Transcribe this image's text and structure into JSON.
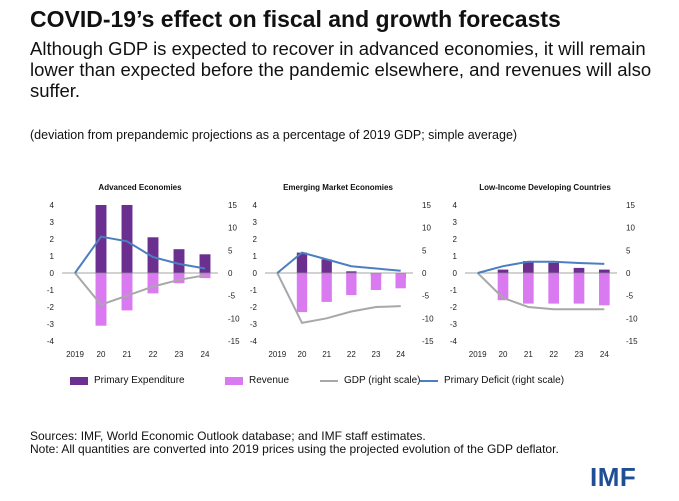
{
  "header": {
    "title": "COVID-19’s effect on fiscal and growth forecasts",
    "subtitle": "Although GDP is expected to recover in advanced economies, it will remain lower than expected before the pandemic elsewhere, and revenues will also suffer.",
    "note": "(deviation from prepandemic projections as a percentage of 2019 GDP; simple average)"
  },
  "colors": {
    "primary_expenditure": "#6b2f8f",
    "revenue": "#d97af0",
    "gdp": "#a8a8a8",
    "primary_deficit": "#4a7fc1",
    "imf_blue": "#1f4e96"
  },
  "chart_data": [
    {
      "type": "bar",
      "title": "Advanced Economies",
      "categories": [
        "2019",
        "20",
        "21",
        "22",
        "23",
        "24"
      ],
      "left_ylim": [
        -4,
        4
      ],
      "left_ticks": [
        "4",
        "3",
        "2",
        "1",
        "0",
        "-1",
        "-2",
        "-3",
        "-4"
      ],
      "right_ylim": [
        -15,
        15
      ],
      "right_ticks": [
        "15",
        "10",
        "5",
        "0",
        "-5",
        "-10",
        "-15"
      ],
      "series": [
        {
          "name": "Primary Expenditure",
          "kind": "bar",
          "axis": "left",
          "values": [
            0,
            4.0,
            4.0,
            2.1,
            1.4,
            1.1
          ]
        },
        {
          "name": "Revenue",
          "kind": "bar",
          "axis": "left",
          "values": [
            0,
            -3.1,
            -2.2,
            -1.2,
            -0.6,
            -0.3
          ]
        },
        {
          "name": "GDP (right scale)",
          "kind": "line",
          "axis": "right",
          "values": [
            0,
            -7.0,
            -5.0,
            -3.0,
            -1.5,
            -0.5
          ]
        },
        {
          "name": "Primary Deficit (right scale)",
          "kind": "line",
          "axis": "right",
          "values": [
            0,
            8.0,
            7.0,
            3.5,
            2.0,
            1.0
          ]
        }
      ]
    },
    {
      "type": "bar",
      "title": "Emerging Market Economies",
      "categories": [
        "2019",
        "20",
        "21",
        "22",
        "23",
        "24"
      ],
      "left_ylim": [
        -4,
        4
      ],
      "left_ticks": [
        "4",
        "3",
        "2",
        "1",
        "0",
        "-1",
        "-2",
        "-3",
        "-4"
      ],
      "right_ylim": [
        -15,
        15
      ],
      "right_ticks": [
        "15",
        "10",
        "5",
        "0",
        "-5",
        "-10",
        "-15"
      ],
      "series": [
        {
          "name": "Primary Expenditure",
          "kind": "bar",
          "axis": "left",
          "values": [
            0,
            1.2,
            0.8,
            0.1,
            -0.2,
            -0.3
          ]
        },
        {
          "name": "Revenue",
          "kind": "bar",
          "axis": "left",
          "values": [
            0,
            -2.3,
            -1.7,
            -1.3,
            -1.0,
            -0.9
          ]
        },
        {
          "name": "GDP (right scale)",
          "kind": "line",
          "axis": "right",
          "values": [
            0,
            -11.0,
            -10.0,
            -8.5,
            -7.5,
            -7.3
          ]
        },
        {
          "name": "Primary Deficit (right scale)",
          "kind": "line",
          "axis": "right",
          "values": [
            0,
            4.5,
            3.0,
            1.5,
            1.0,
            0.5
          ]
        }
      ]
    },
    {
      "type": "bar",
      "title": "Low-Income Developing Countries",
      "categories": [
        "2019",
        "20",
        "21",
        "22",
        "23",
        "24"
      ],
      "left_ylim": [
        -4,
        4
      ],
      "left_ticks": [
        "4",
        "3",
        "2",
        "1",
        "0",
        "-1",
        "-2",
        "-3",
        "-4"
      ],
      "right_ylim": [
        -15,
        15
      ],
      "right_ticks": [
        "15",
        "10",
        "5",
        "0",
        "-5",
        "-10",
        "-15"
      ],
      "series": [
        {
          "name": "Primary Expenditure",
          "kind": "bar",
          "axis": "left",
          "values": [
            0,
            0.2,
            0.7,
            0.6,
            0.3,
            0.2
          ]
        },
        {
          "name": "Revenue",
          "kind": "bar",
          "axis": "left",
          "values": [
            0,
            -1.6,
            -1.8,
            -1.8,
            -1.8,
            -1.9
          ]
        },
        {
          "name": "GDP (right scale)",
          "kind": "line",
          "axis": "right",
          "values": [
            0,
            -5.5,
            -7.5,
            -8.0,
            -8.0,
            -8.0
          ]
        },
        {
          "name": "Primary Deficit (right scale)",
          "kind": "line",
          "axis": "right",
          "values": [
            0,
            1.5,
            2.5,
            2.5,
            2.2,
            2.0
          ]
        }
      ]
    }
  ],
  "legend": [
    {
      "label": "Primary Expenditure",
      "kind": "bar",
      "color": "#6b2f8f"
    },
    {
      "label": "Revenue",
      "kind": "bar",
      "color": "#d97af0"
    },
    {
      "label": "GDP (right scale)",
      "kind": "line",
      "color": "#a8a8a8"
    },
    {
      "label": "Primary Deficit (right scale)",
      "kind": "line",
      "color": "#4a7fc1"
    }
  ],
  "footer": {
    "sources": "Sources: IMF, World Economic Outlook database; and IMF staff estimates.",
    "note": "Note: All quantities are converted into 2019 prices using the projected evolution of the GDP deflator.",
    "logo": "IMF"
  }
}
